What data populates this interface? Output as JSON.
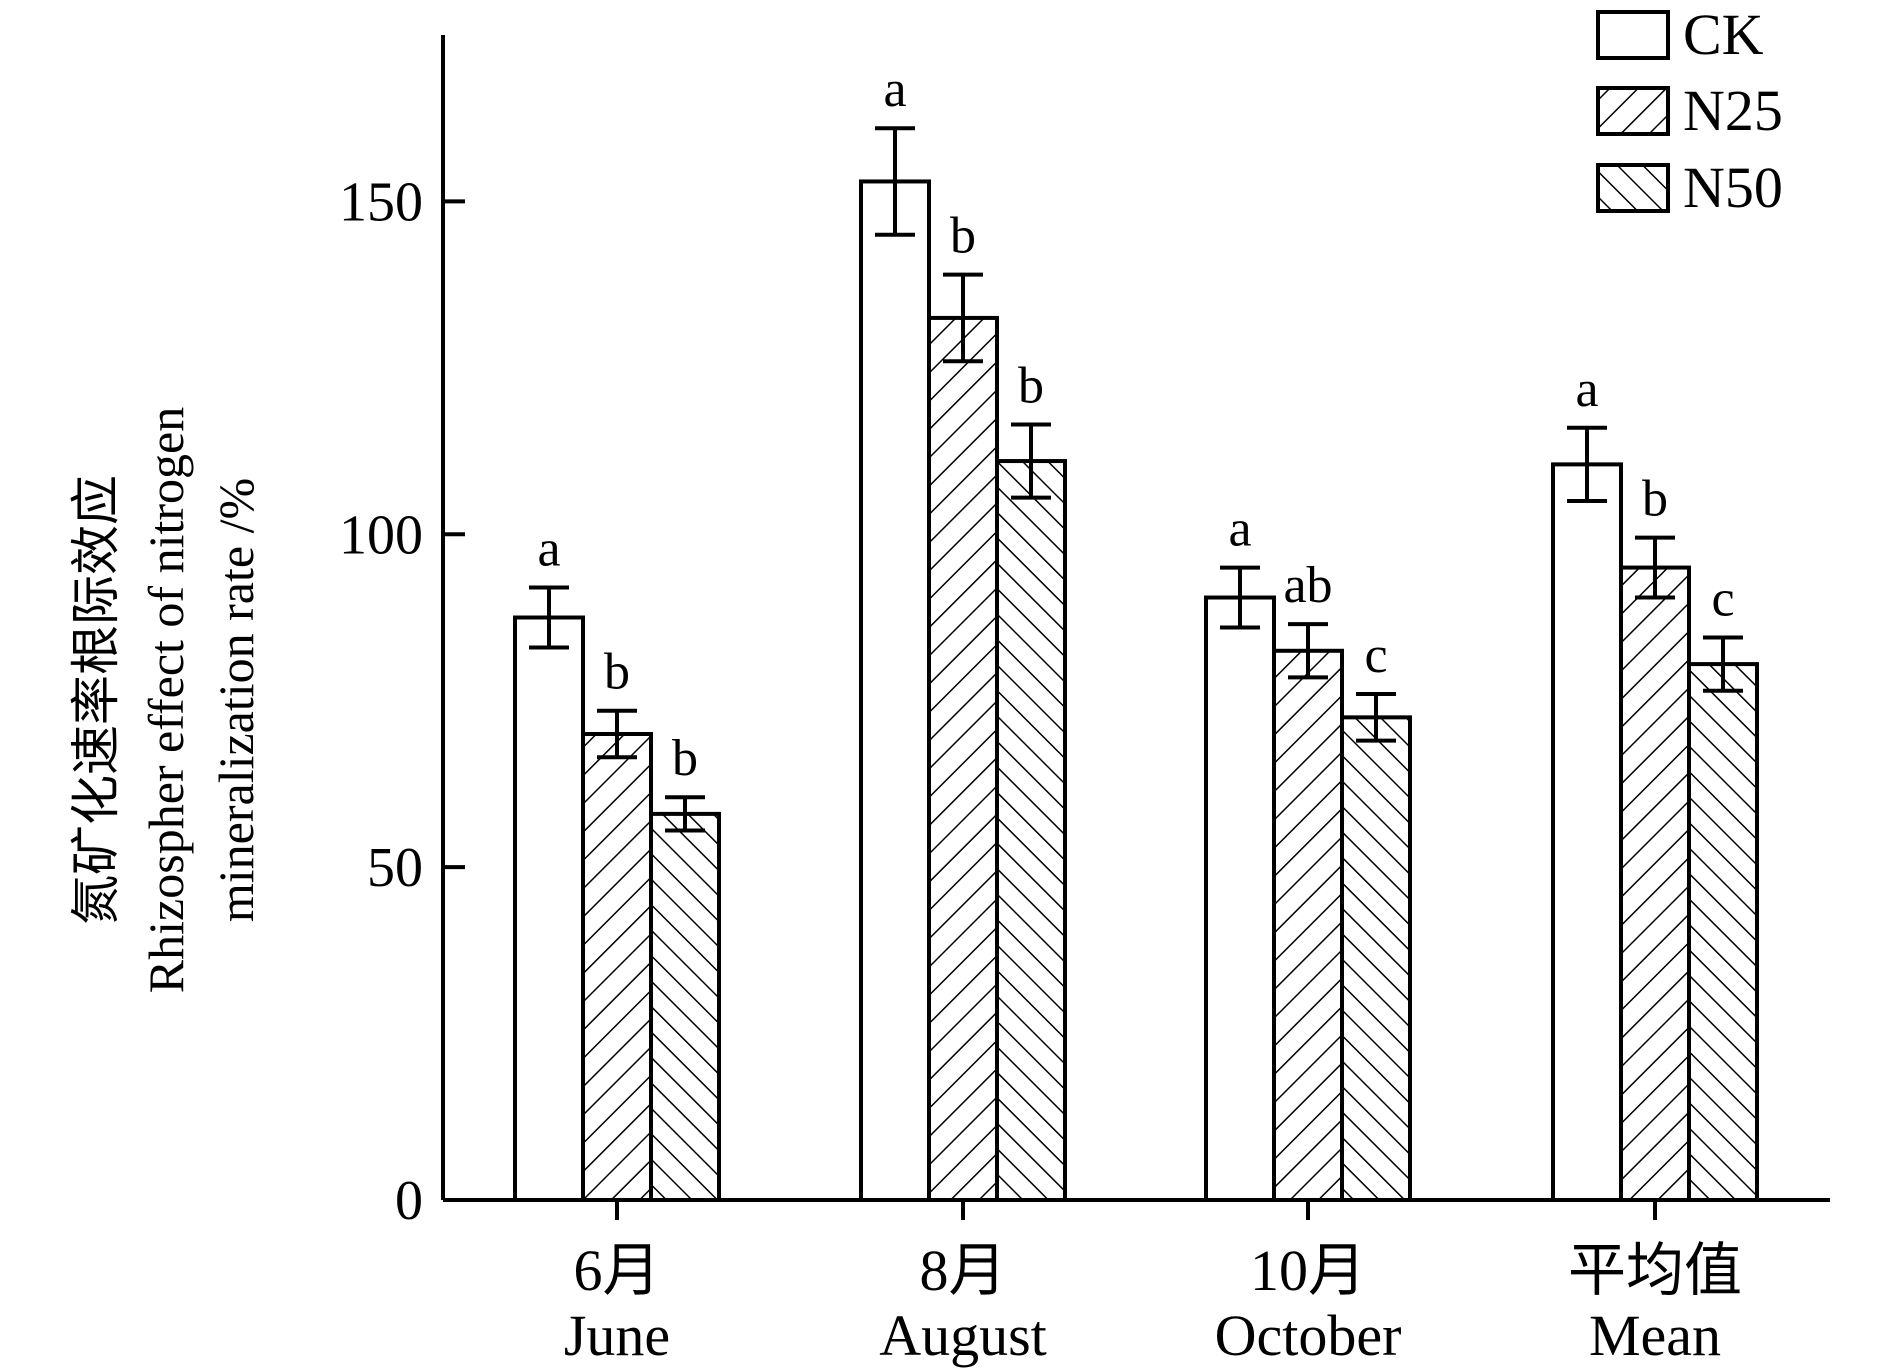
{
  "chart_data": {
    "type": "bar",
    "ylabel_lines": [
      "氮矿化速率根际效应",
      "Rhizospher effect of nitrogen",
      "mineralization rate /%"
    ],
    "xlabel": "",
    "ylim": [
      0,
      175
    ],
    "yticks": [
      0,
      50,
      100,
      150
    ],
    "categories": [
      {
        "cn": "6月",
        "en": "June"
      },
      {
        "cn": "8月",
        "en": "August"
      },
      {
        "cn": "10月",
        "en": "October"
      },
      {
        "cn": "平均值",
        "en": "Mean"
      }
    ],
    "series": [
      {
        "name": "CK",
        "pattern": "none",
        "values": [
          87.5,
          153.0,
          90.5,
          110.5
        ],
        "errors": [
          4.5,
          8.0,
          4.5,
          5.5
        ],
        "letters": [
          "a",
          "a",
          "a",
          "a"
        ]
      },
      {
        "name": "N25",
        "pattern": "forward-hatch",
        "values": [
          70.0,
          132.5,
          82.5,
          95.0
        ],
        "errors": [
          3.5,
          6.5,
          4.0,
          4.5
        ],
        "letters": [
          "b",
          "b",
          "ab",
          "b"
        ]
      },
      {
        "name": "N50",
        "pattern": "back-hatch",
        "values": [
          58.0,
          111.0,
          72.5,
          80.5
        ],
        "errors": [
          2.5,
          5.5,
          3.5,
          4.0
        ],
        "letters": [
          "b",
          "b",
          "c",
          "c"
        ]
      }
    ],
    "legend_position": "top-right",
    "grid": false
  }
}
